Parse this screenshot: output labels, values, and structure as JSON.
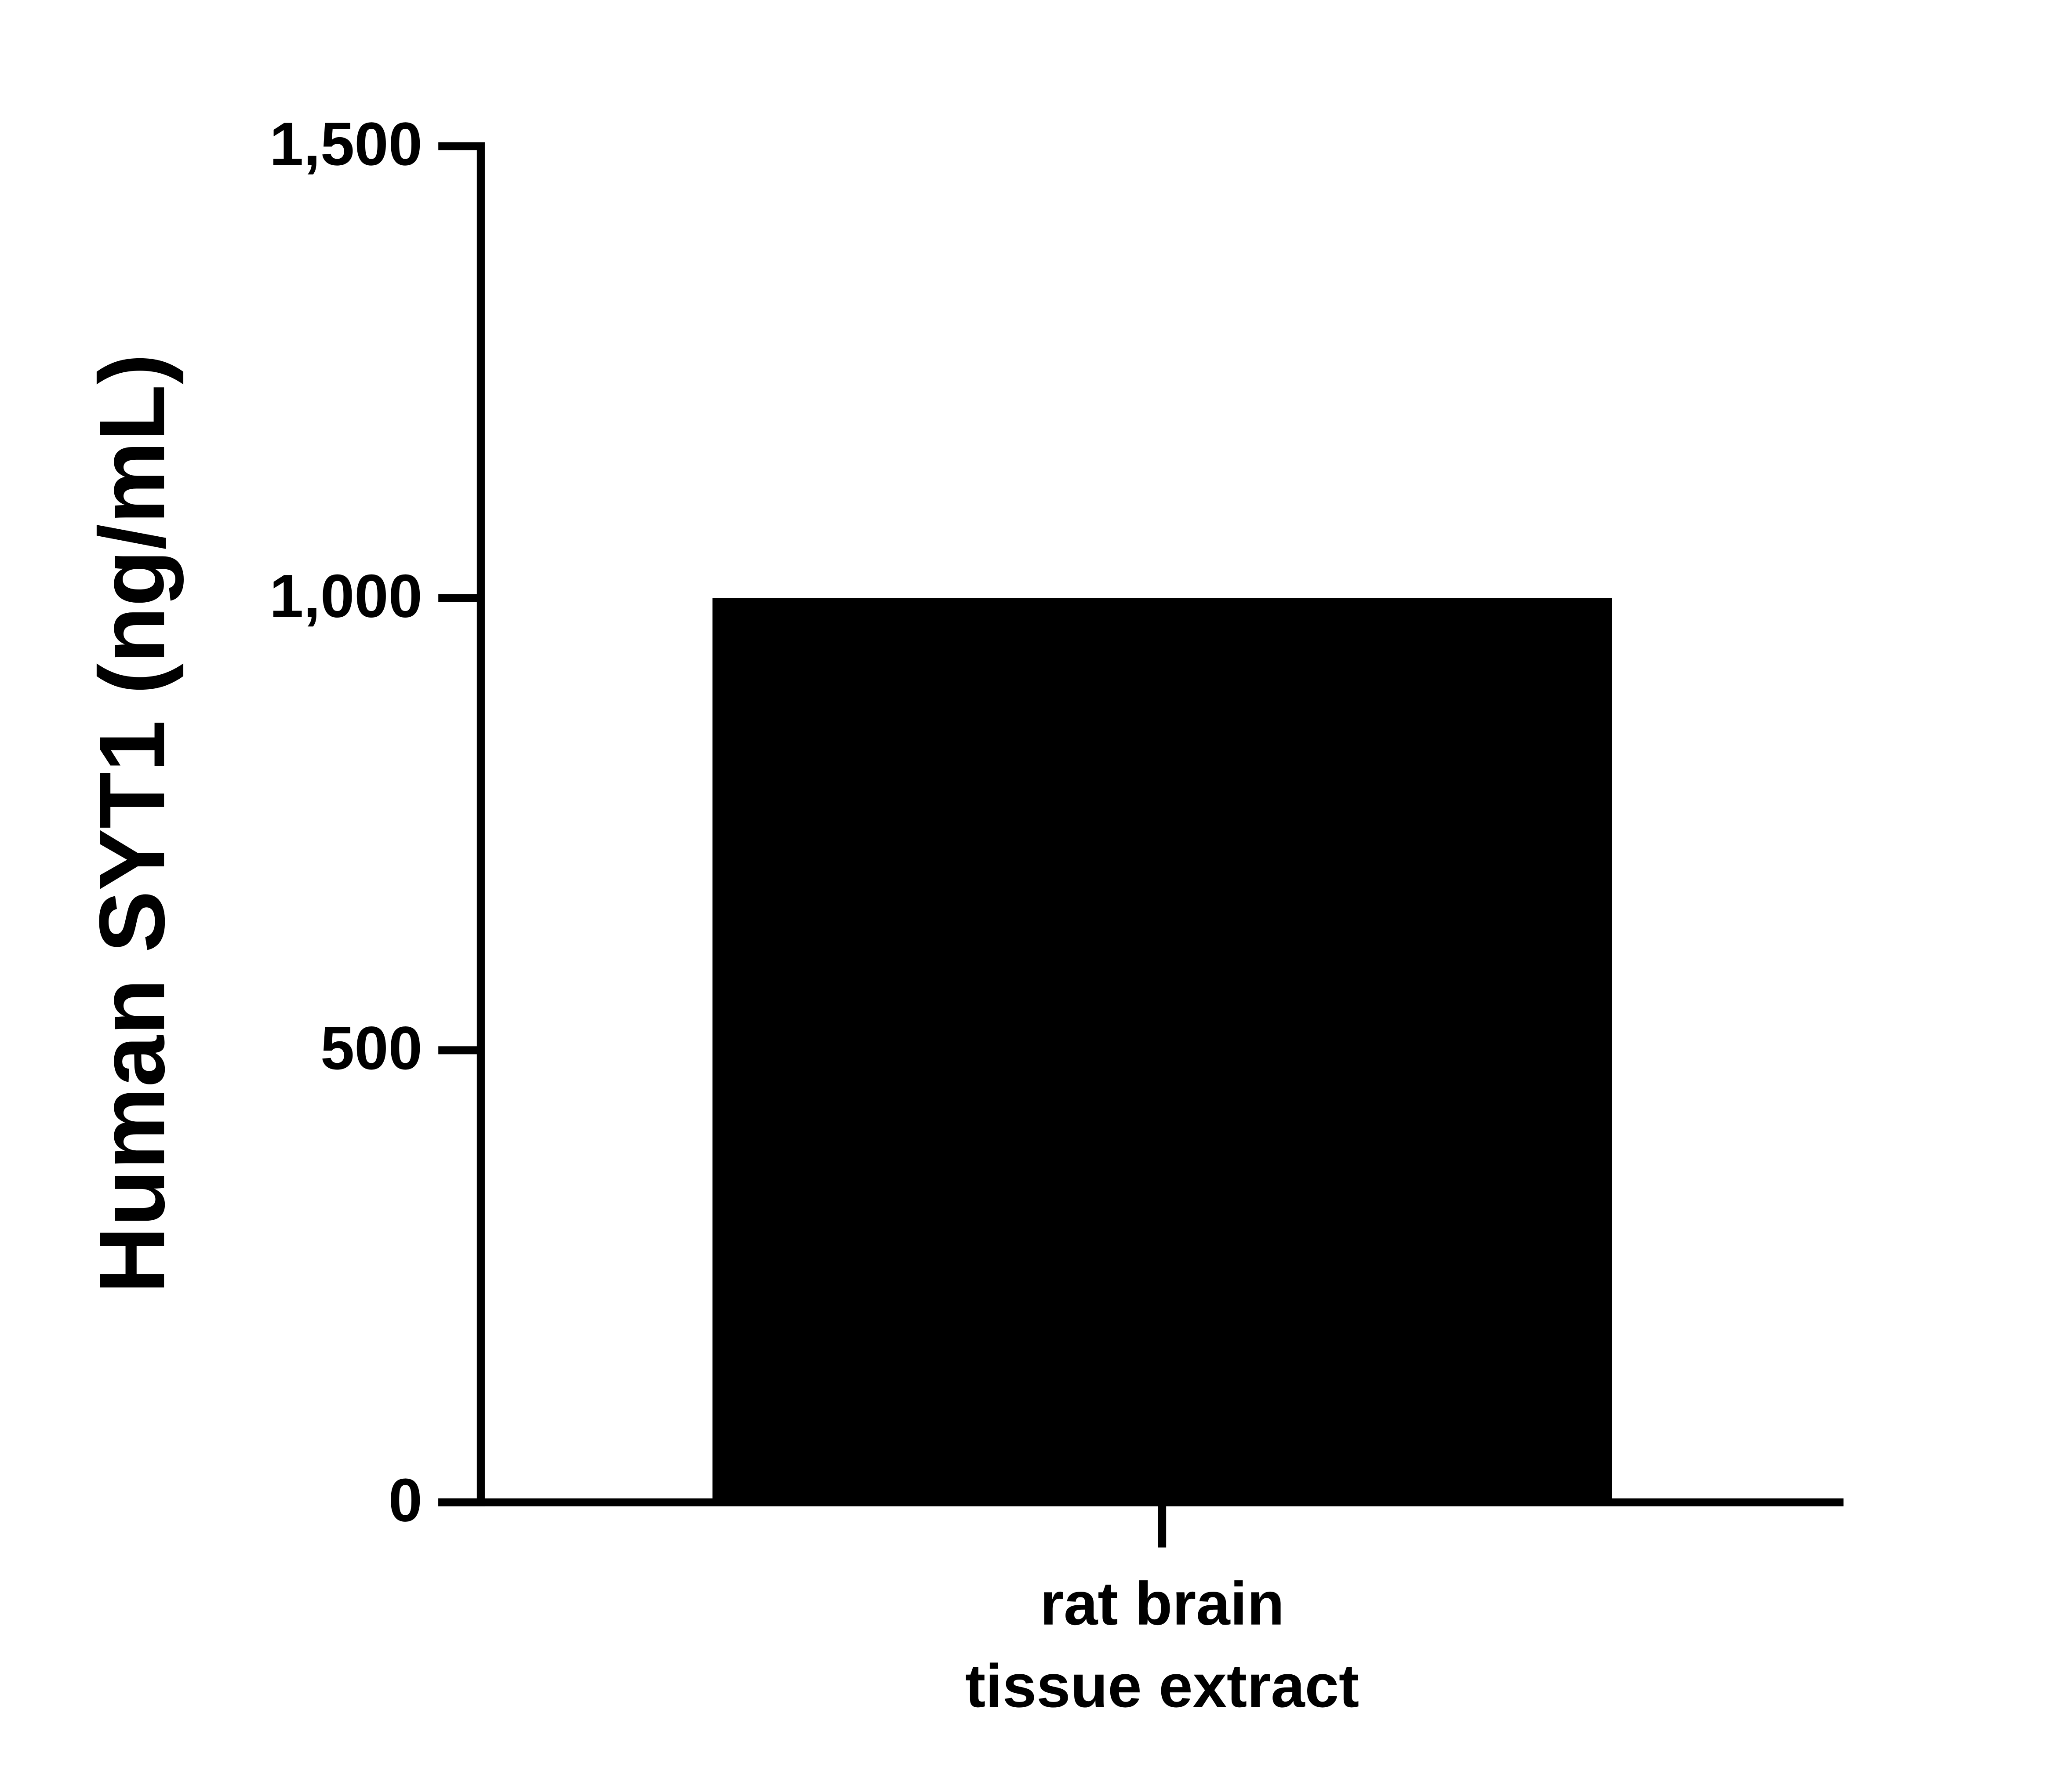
{
  "chart_data": {
    "type": "bar",
    "y_label": "Human SYT1 (ng/mL)",
    "categories": [
      "rat brain\ntissue extract"
    ],
    "values": [
      1000
    ],
    "color": "#000000",
    "ylim": [
      0,
      1500
    ],
    "yticks": [
      0,
      500,
      {
        "value": 1000,
        "label": "1,000"
      },
      {
        "value": 1500,
        "label": "1,500"
      }
    ],
    "grid": false
  }
}
